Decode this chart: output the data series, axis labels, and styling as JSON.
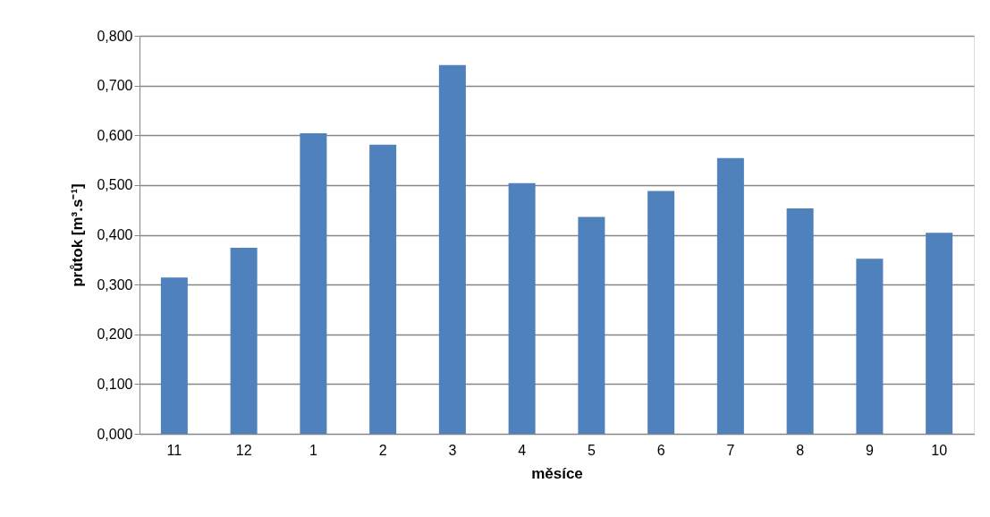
{
  "chart_data": {
    "type": "bar",
    "xlabel": "měsíce",
    "ylabel": "průtok [m³.s⁻¹]",
    "categories": [
      "11",
      "12",
      "1",
      "2",
      "3",
      "4",
      "5",
      "6",
      "7",
      "8",
      "9",
      "10"
    ],
    "values": [
      0.314,
      0.374,
      0.604,
      0.581,
      0.741,
      0.504,
      0.436,
      0.488,
      0.554,
      0.453,
      0.352,
      0.404
    ],
    "color": "#4f81bd",
    "ylim": [
      0,
      0.8
    ],
    "yticks": [
      {
        "value": 0,
        "label": "0,000"
      },
      {
        "value": 0.1,
        "label": "0,100"
      },
      {
        "value": 0.2,
        "label": "0,200"
      },
      {
        "value": 0.3,
        "label": "0,300"
      },
      {
        "value": 0.4,
        "label": "0,400"
      },
      {
        "value": 0.5,
        "label": "0,500"
      },
      {
        "value": 0.6,
        "label": "0,600"
      },
      {
        "value": 0.7,
        "label": "0,700"
      },
      {
        "value": 0.8,
        "label": "0,800"
      }
    ],
    "grid": "y"
  }
}
